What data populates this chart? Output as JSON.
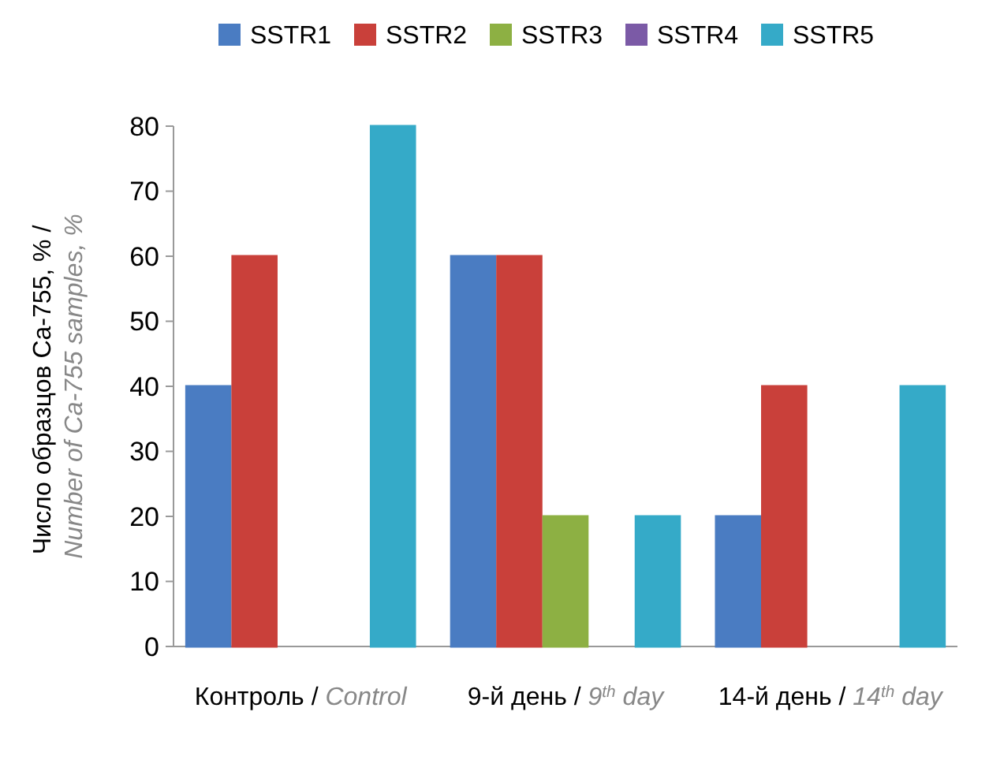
{
  "chart_data": {
    "type": "bar",
    "ylabel": "Число образцов Ca-755, % / Number of Ca-755 samples, %",
    "categories": [
      "Контроль / Control",
      "9-й день / 9$^{th}$ day",
      "14-й день / 14$^{th}$ day"
    ],
    "series": [
      {
        "name": "SSTR1",
        "color": "#4a7cc2",
        "values": [
          40,
          60,
          20
        ]
      },
      {
        "name": "SSTR2",
        "color": "#c9403a",
        "values": [
          60,
          60,
          40
        ]
      },
      {
        "name": "SSTR3",
        "color": "#8db043",
        "values": [
          0,
          20,
          0
        ]
      },
      {
        "name": "SSTR4",
        "color": "#7b5aa6",
        "values": [
          0,
          0,
          0
        ]
      },
      {
        "name": "SSTR5",
        "color": "#35aac8",
        "values": [
          80,
          20,
          40
        ]
      }
    ],
    "ylim": [
      0,
      80
    ],
    "yticks": [
      0,
      10,
      20,
      30,
      40,
      50,
      60,
      70,
      80
    ],
    "grid": false,
    "legend": "top"
  }
}
